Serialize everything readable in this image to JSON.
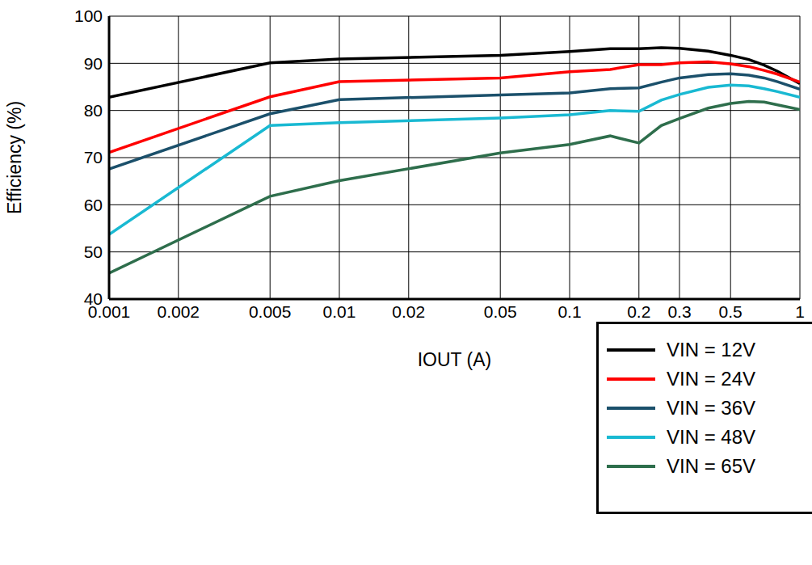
{
  "chart_data": {
    "type": "line",
    "x_label": "IOUT (A)",
    "y_label": "Efficiency (%)",
    "log": "x",
    "grid": true,
    "legend": "lower right",
    "xlim": [
      0.001,
      1
    ],
    "xticks": [
      0.001,
      0.002,
      0.005,
      0.01,
      0.02,
      0.05,
      0.1,
      0.2,
      0.3,
      0.5,
      1
    ],
    "ylim": [
      40,
      100
    ],
    "yticks": [
      40,
      50,
      60,
      70,
      80,
      90,
      100
    ],
    "x": [
      0.001,
      0.005,
      0.01,
      0.05,
      0.1,
      0.15,
      0.2,
      0.25,
      0.3,
      0.4,
      0.5,
      0.6,
      0.7,
      0.8,
      1
    ],
    "series": [
      {
        "name": "VIN = 12V",
        "color": "#000000",
        "values": [
          82.8,
          90.1,
          90.9,
          91.7,
          92.5,
          93.1,
          93.1,
          93.3,
          93.2,
          92.6,
          91.7,
          90.8,
          89.6,
          88.3,
          85.7
        ]
      },
      {
        "name": "VIN = 24V",
        "color": "#ff0000",
        "values": [
          71.1,
          82.9,
          86.1,
          86.9,
          88.2,
          88.7,
          89.7,
          89.7,
          90.1,
          90.3,
          89.9,
          89.3,
          88.5,
          87.7,
          86.0
        ]
      },
      {
        "name": "VIN = 36V",
        "color": "#1b506b",
        "values": [
          67.6,
          79.3,
          82.3,
          83.3,
          83.7,
          84.6,
          84.8,
          86.0,
          86.9,
          87.6,
          87.8,
          87.5,
          86.9,
          86.1,
          84.5
        ]
      },
      {
        "name": "VIN = 48V",
        "color": "#19b9d2",
        "values": [
          53.7,
          76.8,
          77.4,
          78.4,
          79.1,
          80.0,
          79.8,
          82.2,
          83.4,
          84.9,
          85.4,
          85.2,
          84.6,
          84.0,
          82.8
        ]
      },
      {
        "name": "VIN = 65V",
        "color": "#2e6e4c",
        "values": [
          45.5,
          61.8,
          65.1,
          71.0,
          72.8,
          74.6,
          73.1,
          76.8,
          78.3,
          80.5,
          81.5,
          81.9,
          81.8,
          81.2,
          80.2
        ]
      }
    ]
  }
}
